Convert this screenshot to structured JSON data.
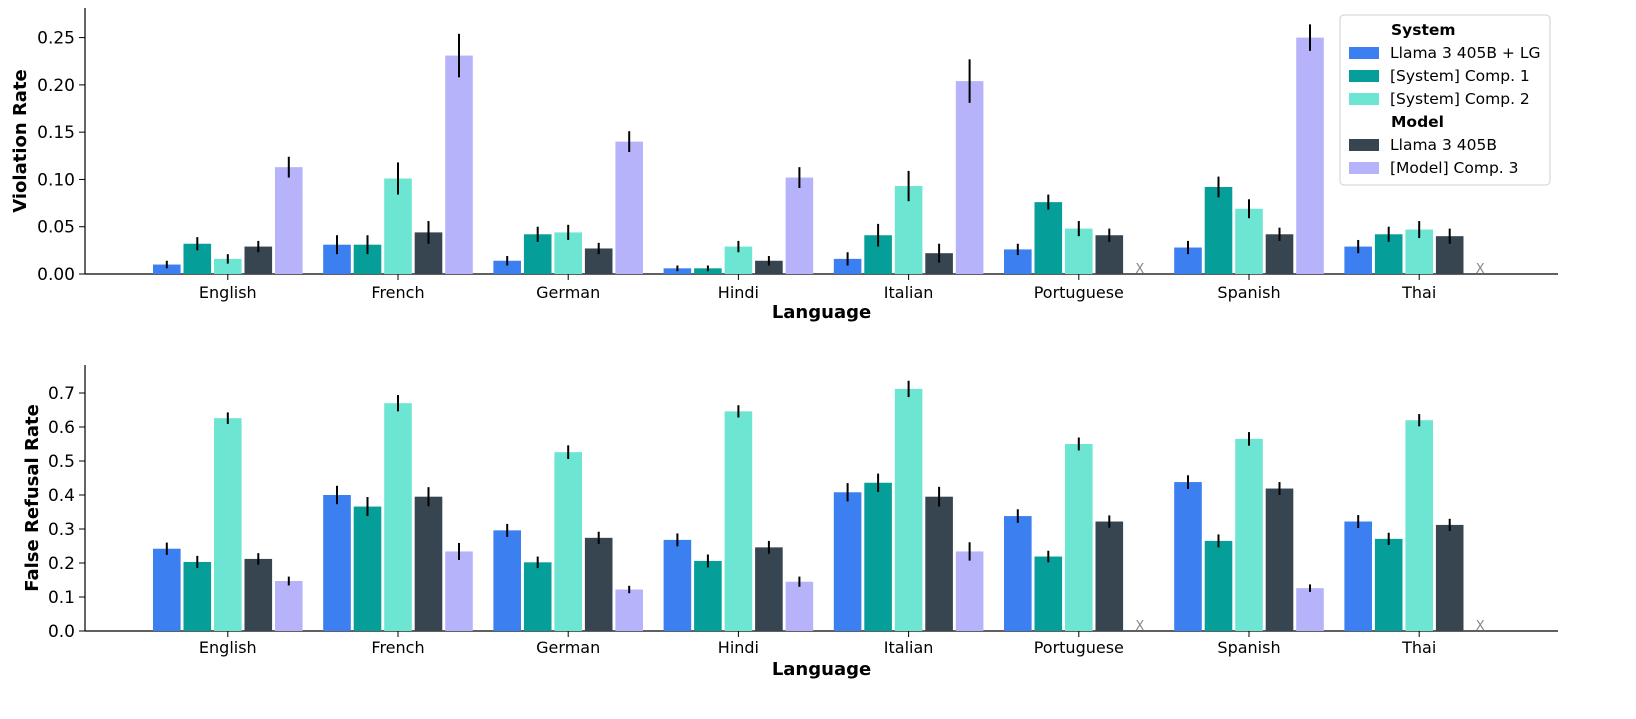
{
  "colors": {
    "Llama 3 405B + LG": "#3b7ff0",
    "[System] Comp. 1": "#069e99",
    "[System] Comp. 2": "#6de5d3",
    "Llama 3 405B": "#36454f",
    "[Model] Comp. 3": "#b7b3fb"
  },
  "missing_marker": "X",
  "legend": {
    "groups": [
      {
        "heading": "System",
        "items": [
          "Llama 3 405B + LG",
          "[System] Comp. 1",
          "[System] Comp. 2"
        ]
      },
      {
        "heading": "Model",
        "items": [
          "Llama 3 405B",
          "[Model] Comp. 3"
        ]
      }
    ]
  },
  "chart_data": [
    {
      "type": "bar",
      "xlabel": "Language",
      "ylabel": "Violation Rate",
      "ylim": [
        0,
        0.28
      ],
      "yticks": [
        "0.00",
        "0.05",
        "0.10",
        "0.15",
        "0.20",
        "0.25"
      ],
      "categories": [
        "English",
        "French",
        "German",
        "Hindi",
        "Italian",
        "Portuguese",
        "Spanish",
        "Thai"
      ],
      "series": [
        {
          "name": "Llama 3 405B + LG",
          "values": [
            0.01,
            0.031,
            0.014,
            0.006,
            0.016,
            0.026,
            0.028,
            0.029
          ],
          "errors": [
            0.004,
            0.01,
            0.005,
            0.003,
            0.007,
            0.006,
            0.007,
            0.007
          ]
        },
        {
          "name": "[System] Comp. 1",
          "values": [
            0.032,
            0.031,
            0.042,
            0.006,
            0.041,
            0.076,
            0.092,
            0.042
          ],
          "errors": [
            0.007,
            0.01,
            0.008,
            0.003,
            0.012,
            0.008,
            0.011,
            0.008
          ]
        },
        {
          "name": "[System] Comp. 2",
          "values": [
            0.016,
            0.101,
            0.044,
            0.029,
            0.093,
            0.048,
            0.069,
            0.047
          ],
          "errors": [
            0.005,
            0.017,
            0.008,
            0.006,
            0.016,
            0.008,
            0.01,
            0.009
          ]
        },
        {
          "name": "Llama 3 405B",
          "values": [
            0.029,
            0.044,
            0.027,
            0.014,
            0.022,
            0.041,
            0.042,
            0.04
          ],
          "errors": [
            0.006,
            0.012,
            0.006,
            0.005,
            0.01,
            0.007,
            0.007,
            0.008
          ]
        },
        {
          "name": "[Model] Comp. 3",
          "values": [
            0.113,
            0.231,
            0.14,
            0.102,
            0.204,
            null,
            0.25,
            null
          ],
          "errors": [
            0.011,
            0.023,
            0.011,
            0.011,
            0.023,
            null,
            0.014,
            null
          ]
        }
      ]
    },
    {
      "type": "bar",
      "xlabel": "Language",
      "ylabel": "False Refusal Rate",
      "ylim": [
        0,
        0.78
      ],
      "yticks": [
        "0.0",
        "0.1",
        "0.2",
        "0.3",
        "0.4",
        "0.5",
        "0.6",
        "0.7"
      ],
      "categories": [
        "English",
        "French",
        "German",
        "Hindi",
        "Italian",
        "Portuguese",
        "Spanish",
        "Thai"
      ],
      "series": [
        {
          "name": "Llama 3 405B + LG",
          "values": [
            0.242,
            0.4,
            0.296,
            0.268,
            0.408,
            0.338,
            0.438,
            0.322
          ],
          "errors": [
            0.018,
            0.027,
            0.019,
            0.019,
            0.027,
            0.02,
            0.02,
            0.019
          ]
        },
        {
          "name": "[System] Comp. 1",
          "values": [
            0.203,
            0.366,
            0.202,
            0.206,
            0.436,
            0.219,
            0.265,
            0.271
          ],
          "errors": [
            0.018,
            0.028,
            0.017,
            0.019,
            0.027,
            0.017,
            0.019,
            0.018
          ]
        },
        {
          "name": "[System] Comp. 2",
          "values": [
            0.626,
            0.67,
            0.526,
            0.646,
            0.712,
            0.55,
            0.565,
            0.62
          ],
          "errors": [
            0.017,
            0.024,
            0.02,
            0.018,
            0.024,
            0.019,
            0.02,
            0.018
          ]
        },
        {
          "name": "Llama 3 405B",
          "values": [
            0.212,
            0.395,
            0.274,
            0.246,
            0.395,
            0.322,
            0.419,
            0.312
          ],
          "errors": [
            0.017,
            0.028,
            0.018,
            0.019,
            0.029,
            0.018,
            0.019,
            0.018
          ]
        },
        {
          "name": "[Model] Comp. 3",
          "values": [
            0.147,
            0.234,
            0.122,
            0.145,
            0.234,
            null,
            0.126,
            null
          ],
          "errors": [
            0.013,
            0.025,
            0.011,
            0.015,
            0.027,
            null,
            0.011,
            null
          ]
        }
      ]
    }
  ]
}
